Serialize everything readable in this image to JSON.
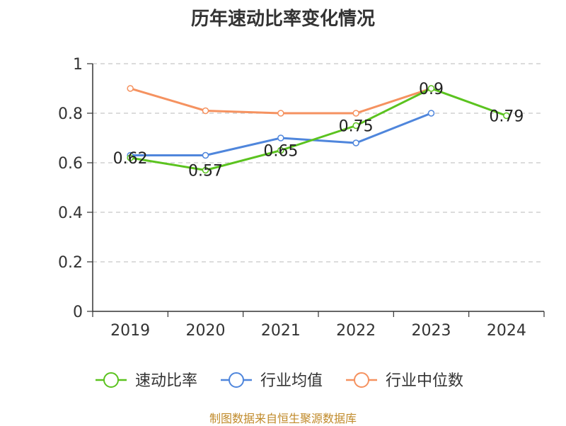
{
  "chart_data": {
    "type": "line",
    "title": "历年速动比率变化情况",
    "categories": [
      "2019",
      "2020",
      "2021",
      "2022",
      "2023",
      "2024"
    ],
    "ylim": [
      0,
      1
    ],
    "yticks": [
      "0",
      "0.2",
      "0.4",
      "0.6",
      "0.8",
      "1"
    ],
    "ytick_values": [
      0,
      0.2,
      0.4,
      0.6,
      0.8,
      1
    ],
    "grid": true,
    "legend_position": "bottom",
    "series": [
      {
        "name": "速动比率",
        "color": "#5bc31f",
        "values": [
          0.62,
          0.57,
          0.65,
          0.75,
          0.9,
          0.79
        ],
        "labels": [
          "0.62",
          "0.57",
          "0.65",
          "0.75",
          "0.9",
          "0.79"
        ]
      },
      {
        "name": "行业均值",
        "color": "#4f86dc",
        "values": [
          0.63,
          0.63,
          0.7,
          0.68,
          0.8,
          null
        ]
      },
      {
        "name": "行业中位数",
        "color": "#f59260",
        "values": [
          0.9,
          0.81,
          0.8,
          0.8,
          0.9,
          null
        ]
      }
    ]
  },
  "source": "制图数据来自恒生聚源数据库"
}
